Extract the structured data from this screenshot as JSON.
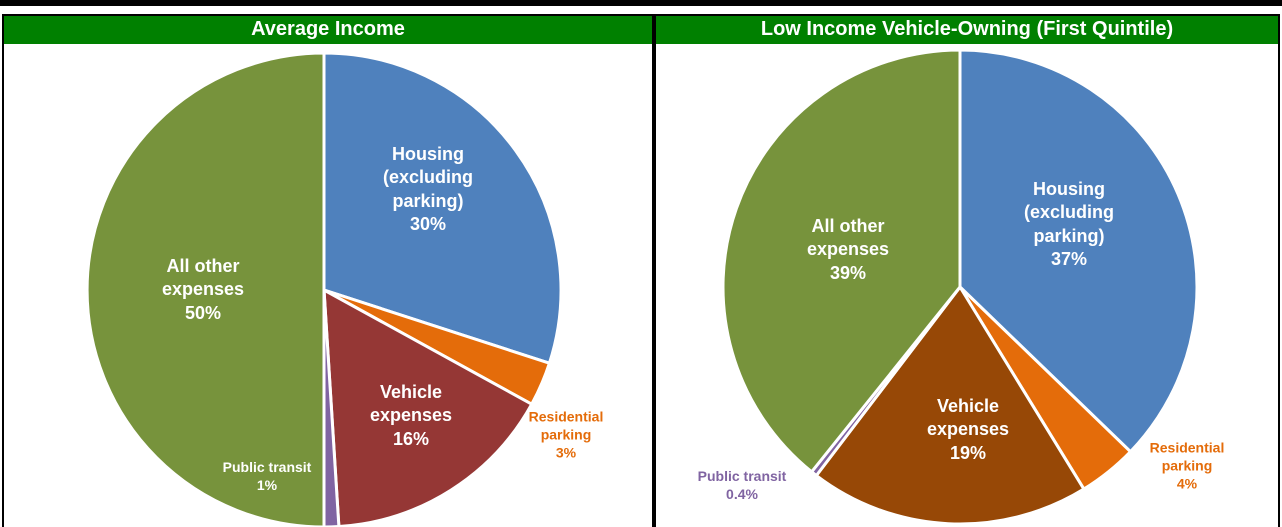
{
  "chart_data": [
    {
      "type": "pie",
      "title": "Average Income",
      "categories": [
        "Housing (excluding parking)",
        "Residential parking",
        "Vehicle expenses",
        "Public transit",
        "All other expenses"
      ],
      "values": [
        30,
        3,
        16,
        1,
        50
      ],
      "value_labels": [
        "30%",
        "3%",
        "16%",
        "1%",
        "50%"
      ],
      "colors": [
        "#4f81bd",
        "#e46c0a",
        "#953735",
        "#8064a2",
        "#77933c"
      ]
    },
    {
      "type": "pie",
      "title": "Low Income Vehicle-Owning (First Quintile)",
      "categories": [
        "Housing (excluding parking)",
        "Residential parking",
        "Vehicle expenses",
        "Public transit",
        "All other expenses"
      ],
      "values": [
        37,
        4,
        19,
        0.4,
        39
      ],
      "value_labels": [
        "37%",
        "4%",
        "19%",
        "0.4%",
        "39%"
      ],
      "colors": [
        "#4f81bd",
        "#e46c0a",
        "#974806",
        "#8064a2",
        "#77933c"
      ]
    }
  ]
}
